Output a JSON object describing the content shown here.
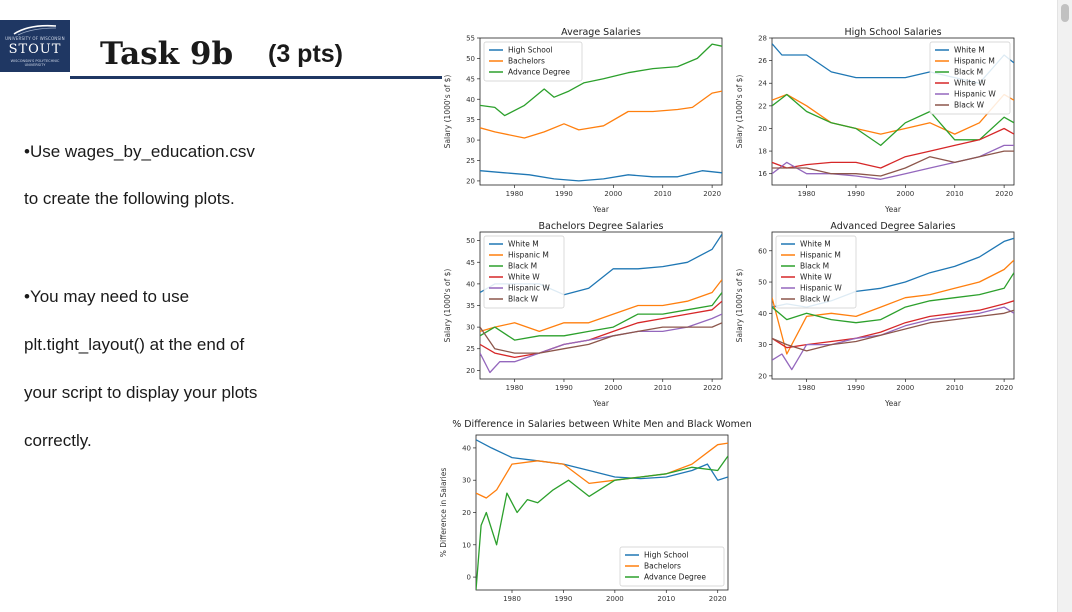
{
  "slide": {
    "logo": {
      "top_text": "UNIVERSITY OF WISCONSIN",
      "main_text": "STOUT",
      "bottom_text": "WISCONSIN'S POLYTECHNIC UNIVERSITY"
    },
    "title": "Task 9b",
    "points": "(3 pts)",
    "bullets": [
      "•Use wages_by_education.csv",
      "to create  the following plots.",
      "•You may need to use",
      "plt.tight_layout()  at the end of",
      "your script to display your plots",
      "correctly."
    ]
  },
  "colors": {
    "blue": "#1f77b4",
    "orange": "#ff7f0e",
    "green": "#2ca02c",
    "red": "#d62728",
    "purple": "#9467bd",
    "brown": "#8c564b",
    "logo_navy": "#1f3763"
  },
  "chart_data": [
    {
      "type": "line",
      "title": "Average Salaries",
      "xlabel": "Year",
      "ylabel": "Salary (1000's of $)",
      "xlim": [
        1973,
        2022
      ],
      "ylim": [
        19,
        55
      ],
      "xticks": [
        1980,
        1990,
        2000,
        2010,
        2020
      ],
      "yticks": [
        20,
        25,
        30,
        35,
        40,
        45,
        50,
        55
      ],
      "legend": "upper-left",
      "series": [
        {
          "name": "High School",
          "color": "#1f77b4",
          "x": [
            1973,
            1978,
            1983,
            1988,
            1993,
            1998,
            2003,
            2008,
            2013,
            2018,
            2022
          ],
          "y": [
            22.5,
            22.0,
            21.5,
            20.5,
            20.0,
            20.5,
            21.5,
            21.0,
            21.0,
            22.5,
            22.0
          ]
        },
        {
          "name": "Bachelors",
          "color": "#ff7f0e",
          "x": [
            1973,
            1976,
            1982,
            1986,
            1990,
            1993,
            1998,
            2003,
            2008,
            2013,
            2016,
            2020,
            2022
          ],
          "y": [
            33,
            32,
            30.5,
            32,
            34,
            32.5,
            33.5,
            37,
            37,
            37.5,
            38,
            41.5,
            42
          ]
        },
        {
          "name": "Advance Degree",
          "color": "#2ca02c",
          "x": [
            1973,
            1976,
            1978,
            1982,
            1986,
            1988,
            1991,
            1994,
            1998,
            2003,
            2008,
            2013,
            2017,
            2020,
            2022
          ],
          "y": [
            38.5,
            38,
            36,
            38.5,
            42.5,
            40.5,
            42,
            44,
            45,
            46.5,
            47.5,
            48,
            50,
            53.5,
            53
          ]
        }
      ]
    },
    {
      "type": "line",
      "title": "High School Salaries",
      "xlabel": "Year",
      "ylabel": "Salary (1000's of $)",
      "xlim": [
        1973,
        2022
      ],
      "ylim": [
        15,
        28
      ],
      "xticks": [
        1980,
        1990,
        2000,
        2010,
        2020
      ],
      "yticks": [
        16,
        18,
        20,
        22,
        24,
        26,
        28
      ],
      "legend": "upper-right",
      "series": [
        {
          "name": "White M",
          "color": "#1f77b4",
          "x": [
            1973,
            1975,
            1980,
            1985,
            1990,
            1995,
            2000,
            2005,
            2010,
            2015,
            2020,
            2022
          ],
          "y": [
            27.5,
            26.5,
            26.5,
            25,
            24.5,
            24.5,
            24.5,
            25,
            24.5,
            24,
            26.5,
            25.8
          ]
        },
        {
          "name": "Hispanic M",
          "color": "#ff7f0e",
          "x": [
            1973,
            1976,
            1980,
            1985,
            1990,
            1995,
            2000,
            2005,
            2010,
            2015,
            2020,
            2022
          ],
          "y": [
            22.5,
            23,
            22,
            20.5,
            20,
            19.5,
            20,
            20.5,
            19.5,
            20.5,
            23,
            22.5
          ]
        },
        {
          "name": "Black M",
          "color": "#2ca02c",
          "x": [
            1973,
            1976,
            1980,
            1985,
            1990,
            1995,
            2000,
            2005,
            2010,
            2015,
            2020,
            2022
          ],
          "y": [
            22,
            23,
            21.5,
            20.5,
            20,
            18.5,
            20.5,
            21.5,
            19,
            19,
            21,
            20.5
          ]
        },
        {
          "name": "White W",
          "color": "#d62728",
          "x": [
            1973,
            1976,
            1980,
            1985,
            1990,
            1995,
            2000,
            2005,
            2010,
            2015,
            2020,
            2022
          ],
          "y": [
            17,
            16.5,
            16.8,
            17,
            17,
            16.5,
            17.5,
            18,
            18.5,
            19,
            20,
            19.5
          ]
        },
        {
          "name": "Hispanic W",
          "color": "#9467bd",
          "x": [
            1973,
            1976,
            1980,
            1985,
            1990,
            1995,
            2000,
            2005,
            2010,
            2015,
            2020,
            2022
          ],
          "y": [
            16,
            17,
            16,
            16,
            15.8,
            15.5,
            16,
            16.5,
            17,
            17.5,
            18.5,
            18.5
          ]
        },
        {
          "name": "Black W",
          "color": "#8c564b",
          "x": [
            1973,
            1976,
            1980,
            1985,
            1990,
            1995,
            2000,
            2005,
            2010,
            2015,
            2020,
            2022
          ],
          "y": [
            16.5,
            16.5,
            16.5,
            16,
            16,
            15.8,
            16.5,
            17.5,
            17,
            17.5,
            18,
            18
          ]
        }
      ]
    },
    {
      "type": "line",
      "title": "Bachelors Degree Salaries",
      "xlabel": "Year",
      "ylabel": "Salary (1000's of $)",
      "xlim": [
        1973,
        2022
      ],
      "ylim": [
        18,
        52
      ],
      "xticks": [
        1980,
        1990,
        2000,
        2010,
        2020
      ],
      "yticks": [
        20,
        25,
        30,
        35,
        40,
        45,
        50
      ],
      "legend": "upper-left",
      "series": [
        {
          "name": "White M",
          "color": "#1f77b4",
          "x": [
            1973,
            1976,
            1980,
            1985,
            1990,
            1995,
            2000,
            2005,
            2010,
            2015,
            2020,
            2022
          ],
          "y": [
            38,
            40,
            40,
            40,
            37.5,
            39,
            43.5,
            43.5,
            44,
            45,
            48,
            51.5
          ]
        },
        {
          "name": "Hispanic M",
          "color": "#ff7f0e",
          "x": [
            1973,
            1976,
            1980,
            1985,
            1990,
            1995,
            2000,
            2005,
            2010,
            2015,
            2020,
            2022
          ],
          "y": [
            29,
            30,
            31,
            29,
            31,
            31,
            33,
            35,
            35,
            36,
            38,
            41
          ]
        },
        {
          "name": "Black M",
          "color": "#2ca02c",
          "x": [
            1973,
            1976,
            1980,
            1985,
            1990,
            1995,
            2000,
            2005,
            2010,
            2015,
            2020,
            2022
          ],
          "y": [
            28,
            30,
            27,
            28,
            28,
            29,
            30,
            33,
            33,
            34,
            35,
            38
          ]
        },
        {
          "name": "White W",
          "color": "#d62728",
          "x": [
            1973,
            1976,
            1980,
            1985,
            1990,
            1995,
            2000,
            2005,
            2010,
            2015,
            2020,
            2022
          ],
          "y": [
            26,
            24,
            23,
            24,
            26,
            27,
            29,
            31,
            32,
            33,
            34,
            36
          ]
        },
        {
          "name": "Hispanic W",
          "color": "#9467bd",
          "x": [
            1973,
            1975,
            1977,
            1980,
            1985,
            1990,
            1995,
            2000,
            2005,
            2010,
            2015,
            2020,
            2022
          ],
          "y": [
            24,
            19.5,
            22,
            22,
            24,
            26,
            27,
            28,
            29,
            29,
            30,
            32,
            33
          ]
        },
        {
          "name": "Black W",
          "color": "#8c564b",
          "x": [
            1973,
            1976,
            1980,
            1985,
            1990,
            1995,
            2000,
            2005,
            2010,
            2015,
            2020,
            2022
          ],
          "y": [
            30,
            25,
            24,
            24,
            25,
            26,
            28,
            29,
            30,
            30,
            30,
            31
          ]
        }
      ]
    },
    {
      "type": "line",
      "title": "Advanced Degree Salaries",
      "xlabel": "Year",
      "ylabel": "Salary (1000's of $)",
      "xlim": [
        1973,
        2022
      ],
      "ylim": [
        19,
        66
      ],
      "xticks": [
        1980,
        1990,
        2000,
        2010,
        2020
      ],
      "yticks": [
        20,
        30,
        40,
        50,
        60
      ],
      "legend": "upper-left",
      "series": [
        {
          "name": "White M",
          "color": "#1f77b4",
          "x": [
            1973,
            1976,
            1980,
            1985,
            1990,
            1995,
            2000,
            2005,
            2010,
            2015,
            2020,
            2022
          ],
          "y": [
            42,
            43,
            42,
            44,
            47,
            48,
            50,
            53,
            55,
            58,
            63,
            64
          ]
        },
        {
          "name": "Hispanic M",
          "color": "#ff7f0e",
          "x": [
            1973,
            1976,
            1980,
            1985,
            1990,
            1995,
            2000,
            2005,
            2010,
            2015,
            2020,
            2022
          ],
          "y": [
            45,
            27,
            39,
            40,
            39,
            42,
            45,
            46,
            48,
            50,
            54,
            57
          ]
        },
        {
          "name": "Black M",
          "color": "#2ca02c",
          "x": [
            1973,
            1976,
            1980,
            1985,
            1990,
            1995,
            2000,
            2005,
            2010,
            2015,
            2020,
            2022
          ],
          "y": [
            42,
            38,
            40,
            38,
            37,
            38,
            42,
            44,
            45,
            46,
            48,
            53
          ]
        },
        {
          "name": "White W",
          "color": "#d62728",
          "x": [
            1973,
            1976,
            1980,
            1985,
            1990,
            1995,
            2000,
            2005,
            2010,
            2015,
            2020,
            2022
          ],
          "y": [
            32,
            29,
            30,
            31,
            32,
            34,
            37,
            39,
            40,
            41,
            43,
            44
          ]
        },
        {
          "name": "Hispanic W",
          "color": "#9467bd",
          "x": [
            1973,
            1975,
            1977,
            1980,
            1985,
            1990,
            1995,
            2000,
            2005,
            2010,
            2015,
            2020,
            2022
          ],
          "y": [
            25,
            27,
            22,
            30,
            30,
            32,
            33,
            36,
            38,
            39,
            40,
            42,
            40
          ]
        },
        {
          "name": "Black W",
          "color": "#8c564b",
          "x": [
            1973,
            1976,
            1980,
            1985,
            1990,
            1995,
            2000,
            2005,
            2010,
            2015,
            2020,
            2022
          ],
          "y": [
            32,
            30,
            28,
            30,
            31,
            33,
            35,
            37,
            38,
            39,
            40,
            41
          ]
        }
      ]
    },
    {
      "type": "line",
      "title": "% Difference in Salaries between White Men and Black Women",
      "xlabel": "",
      "ylabel": "% Difference in Salaries",
      "xlim": [
        1973,
        2022
      ],
      "ylim": [
        -4,
        44
      ],
      "xticks": [
        1980,
        1990,
        2000,
        2010,
        2020
      ],
      "yticks": [
        0,
        10,
        20,
        30,
        40
      ],
      "legend": "lower-right",
      "series": [
        {
          "name": "High School",
          "color": "#1f77b4",
          "x": [
            1973,
            1976,
            1980,
            1985,
            1990,
            1995,
            2000,
            2005,
            2010,
            2015,
            2018,
            2020,
            2022
          ],
          "y": [
            42.5,
            40,
            37,
            36,
            35,
            33,
            31,
            30.5,
            31,
            33,
            35,
            30,
            31
          ]
        },
        {
          "name": "Bachelors",
          "color": "#ff7f0e",
          "x": [
            1973,
            1975,
            1977,
            1980,
            1985,
            1990,
            1995,
            2000,
            2005,
            2010,
            2015,
            2020,
            2022
          ],
          "y": [
            26,
            24.5,
            27,
            35,
            36,
            35,
            29,
            30,
            31,
            32,
            35,
            41,
            41.5
          ]
        },
        {
          "name": "Advance Degree",
          "color": "#2ca02c",
          "x": [
            1973,
            1974,
            1975,
            1977,
            1979,
            1981,
            1983,
            1985,
            1988,
            1991,
            1995,
            2000,
            2005,
            2010,
            2015,
            2020,
            2022
          ],
          "y": [
            -4,
            16,
            20,
            10,
            26,
            20,
            24,
            23,
            27,
            30,
            25,
            30,
            31,
            32,
            34,
            33,
            37.5
          ]
        }
      ]
    }
  ]
}
